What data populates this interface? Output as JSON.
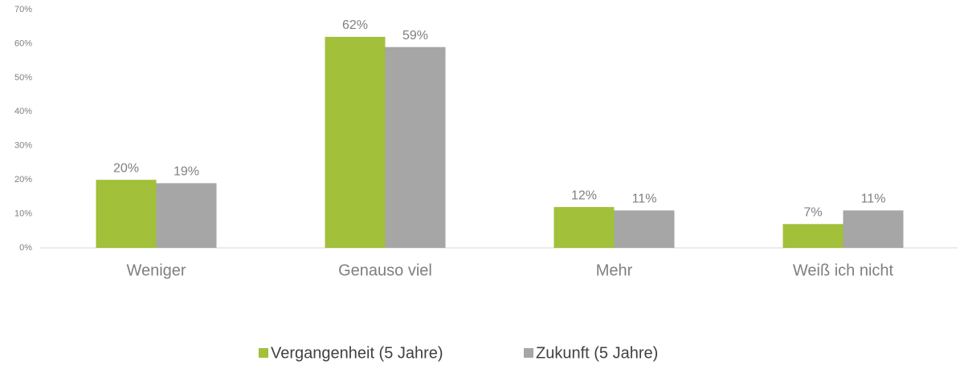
{
  "chart_data": {
    "type": "bar",
    "categories": [
      "Weniger",
      "Genauso viel",
      "Mehr",
      "Weiß ich nicht"
    ],
    "series": [
      {
        "name": "Vergangenheit (5 Jahre)",
        "color": "#a2c03a",
        "values": [
          20,
          62,
          12,
          7
        ],
        "value_labels": [
          "20%",
          "62%",
          "12%",
          "7%"
        ]
      },
      {
        "name": "Zukunft (5 Jahre)",
        "color": "#a6a6a6",
        "values": [
          19,
          59,
          11,
          11
        ],
        "value_labels": [
          "19%",
          "59%",
          "11%",
          "11%"
        ]
      }
    ],
    "ylim": [
      0,
      70
    ],
    "yticks": [
      {
        "value": 0,
        "label": "0%"
      },
      {
        "value": 10,
        "label": "10%"
      },
      {
        "value": 20,
        "label": "20%"
      },
      {
        "value": 30,
        "label": "30%"
      },
      {
        "value": 40,
        "label": "40%"
      },
      {
        "value": 50,
        "label": "50%"
      },
      {
        "value": 60,
        "label": "60%"
      },
      {
        "value": 70,
        "label": "70%"
      }
    ],
    "grid": false,
    "legend": "bottom"
  }
}
